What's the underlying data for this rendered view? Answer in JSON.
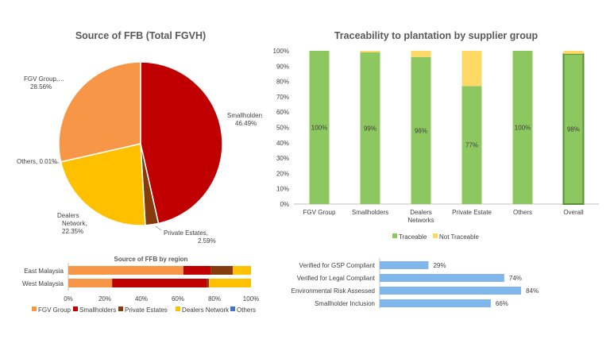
{
  "colors": {
    "fgv_group": "#F79646",
    "smallholders": "#C00000",
    "private_estates": "#843C0C",
    "dealers_network": "#FFC000",
    "others": "#4472C4",
    "traceable": "#8DC760",
    "not_traceable": "#FFD966",
    "overall_outline": "#5A8E3A",
    "hbar": "#7FB7EC",
    "axis": "#BFBFBF",
    "grid": "#D9D9D9"
  },
  "chart_data": [
    {
      "type": "pie",
      "title": "Source of FFB (Total FGVH)",
      "slices": [
        {
          "label": "Smallholders, 46.49%",
          "lines": [
            "Smallholders,",
            "46.49%"
          ],
          "value": 46.49,
          "color_key": "smallholders"
        },
        {
          "label": "Private Estates, 2.59%",
          "lines": [
            "Private Estates,",
            "2.59%"
          ],
          "value": 2.59,
          "color_key": "private_estates"
        },
        {
          "label": "Dealers Network, 22.35%",
          "lines": [
            "Dealers",
            "Network,",
            "22.35%"
          ],
          "value": 22.35,
          "color_key": "dealers_network"
        },
        {
          "label": "Others, 0.01%",
          "lines": [
            "Others, 0.01%"
          ],
          "value": 0.01,
          "color_key": "others"
        },
        {
          "label": "FGV Group, 28.56%",
          "lines": [
            "FGV Group,…",
            "28.56%"
          ],
          "value": 28.56,
          "color_key": "fgv_group"
        }
      ]
    },
    {
      "type": "bar",
      "orientation": "horizontal",
      "stacked": true,
      "title": "Source of FFB by region",
      "categories": [
        "East Malaysia",
        "West Malaysia"
      ],
      "xlim": [
        0,
        100
      ],
      "x_ticks": [
        "0%",
        "20%",
        "40%",
        "60%",
        "80%",
        "100%"
      ],
      "series": [
        {
          "name": "FGV Group",
          "color_key": "fgv_group",
          "values": [
            63,
            24
          ]
        },
        {
          "name": "Smallholders",
          "color_key": "smallholders",
          "values": [
            15,
            52
          ]
        },
        {
          "name": "Private Estates",
          "color_key": "private_estates",
          "values": [
            12,
            1
          ]
        },
        {
          "name": "Dealers Network",
          "color_key": "dealers_network",
          "values": [
            10,
            23
          ]
        },
        {
          "name": "Others",
          "color_key": "others",
          "values": [
            0,
            0
          ]
        }
      ],
      "legend_position": "bottom"
    },
    {
      "type": "bar",
      "stacked": true,
      "title": "Traceability to plantation by supplier group",
      "categories": [
        "FGV Group",
        "Smallholders",
        "Dealers Networks",
        "Private Estate",
        "Others",
        "Overall"
      ],
      "category_lines": [
        [
          "FGV Group"
        ],
        [
          "Smallholders"
        ],
        [
          "Dealers",
          "Networks"
        ],
        [
          "Private Estate"
        ],
        [
          "Others"
        ],
        [
          "Overall"
        ]
      ],
      "ylim": [
        0,
        100
      ],
      "y_ticks": [
        "0%",
        "10%",
        "20%",
        "30%",
        "40%",
        "50%",
        "60%",
        "70%",
        "80%",
        "90%",
        "100%"
      ],
      "series": [
        {
          "name": "Traceable",
          "color_key": "traceable",
          "values": [
            100,
            99,
            96,
            77,
            100,
            98
          ],
          "data_labels": [
            "100%",
            "99%",
            "96%",
            "77%",
            "100%",
            "98%"
          ]
        },
        {
          "name": "Not Traceable",
          "color_key": "not_traceable",
          "values": [
            0,
            1,
            4,
            23,
            0,
            2
          ]
        }
      ],
      "legend_position": "bottom"
    },
    {
      "type": "bar",
      "orientation": "horizontal",
      "categories": [
        "Verified for GSP Compliant",
        "Verified for Legal Compliant",
        "Environmental Risk Assessed",
        "Smallholder Inclusion"
      ],
      "values": [
        29,
        74,
        84,
        66
      ],
      "data_labels": [
        "29%",
        "74%",
        "84%",
        "66%"
      ],
      "xlim": [
        0,
        100
      ],
      "color_key": "hbar"
    }
  ]
}
